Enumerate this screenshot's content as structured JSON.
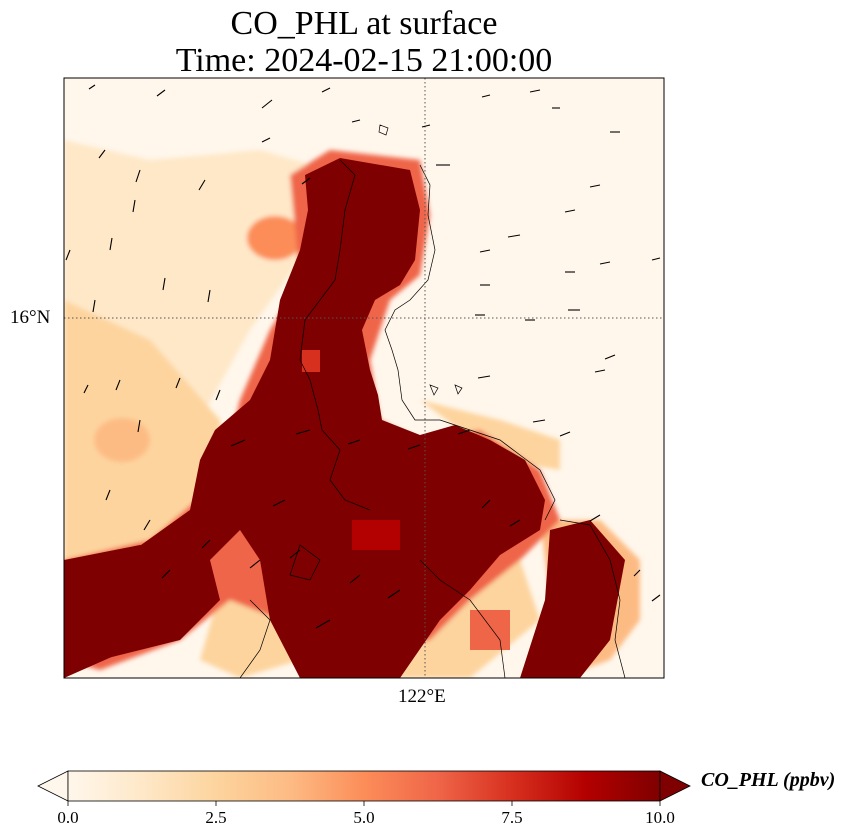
{
  "header": {
    "title_line1": "CO_PHL at surface",
    "title_line2": "Time: 2024-02-15 21:00:00"
  },
  "map": {
    "lat_tick": "16°N",
    "lon_tick": "122°E",
    "gridline_style": "dotted"
  },
  "colorbar": {
    "label": "CO_PHL (ppbv)",
    "colormap": "OrRd",
    "ticks": [
      "0.0",
      "2.5",
      "5.0",
      "7.5",
      "10.0"
    ],
    "range": [
      0,
      10
    ],
    "extend": "both",
    "colors": [
      "#fff7ec",
      "#fee8c8",
      "#fdd49e",
      "#fdbb84",
      "#fc8d59",
      "#ef6548",
      "#d7301f",
      "#b30000",
      "#7f0000"
    ]
  },
  "legend_placement": "bottom"
}
